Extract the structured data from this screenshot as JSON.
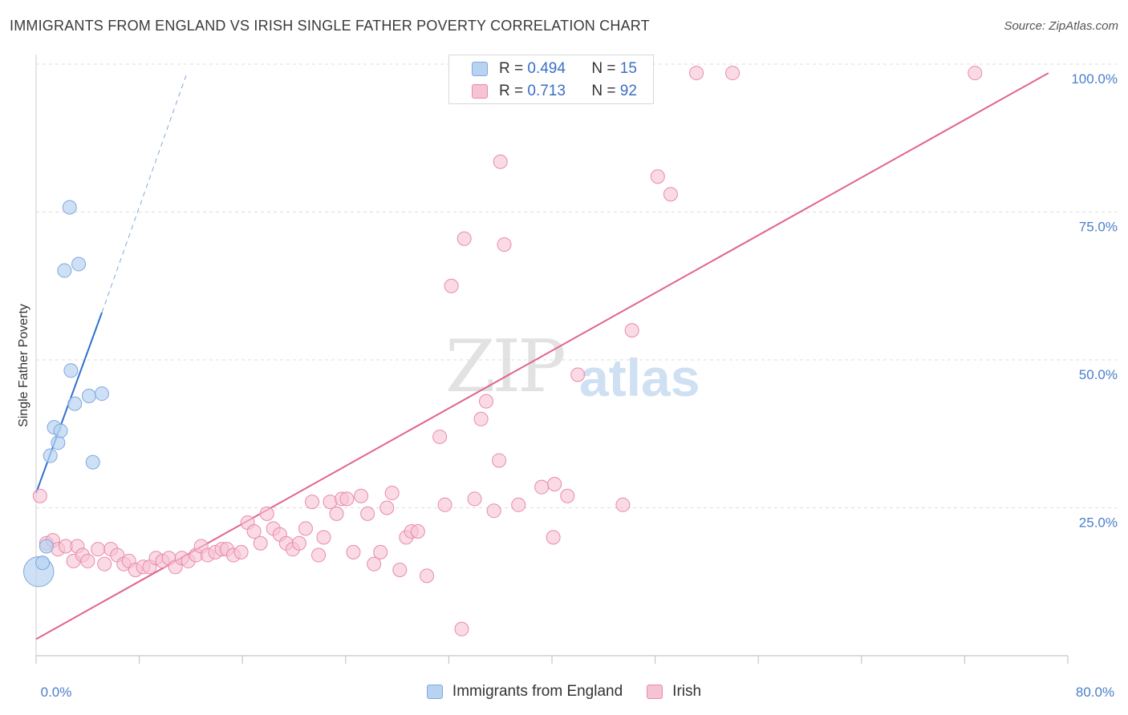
{
  "title": "IMMIGRANTS FROM ENGLAND VS IRISH SINGLE FATHER POVERTY CORRELATION CHART",
  "source": "Source: ZipAtlas.com",
  "watermark": {
    "zip": "ZIP",
    "atlas": "atlas"
  },
  "colors": {
    "blue_fill": "#b8d3f2",
    "blue_stroke": "#7fa8dd",
    "blue_line": "#2e6fd0",
    "pink_fill": "#f6c3d3",
    "pink_stroke": "#e98aa8",
    "pink_line": "#e0648d",
    "grid": "#dddddd",
    "tick_label": "#4a7fc9"
  },
  "legend": {
    "rows": [
      {
        "r_label": "R =",
        "r_value": "0.494",
        "n_label": "N =",
        "n_value": "15"
      },
      {
        "r_label": "R =",
        "r_value": "0.713",
        "n_label": "N = ",
        "n_value": "92"
      }
    ]
  },
  "bottom_legend": [
    "Immigrants from England",
    "Irish"
  ],
  "chart_data": {
    "type": "scatter",
    "title": "IMMIGRANTS FROM ENGLAND VS IRISH SINGLE FATHER POVERTY CORRELATION CHART",
    "xlabel": "",
    "ylabel": "Single Father Poverty",
    "xlim": [
      0,
      80
    ],
    "ylim": [
      0,
      100
    ],
    "x_tick_labels": [
      "0.0%",
      "80.0%"
    ],
    "y_ticks": [
      25,
      50,
      75,
      100
    ],
    "y_tick_labels": [
      "25.0%",
      "50.0%",
      "75.0%",
      "100.0%"
    ],
    "grid": true,
    "legend_position": "top-center",
    "series": [
      {
        "name": "Immigrants from England",
        "color": "#b8d3f2",
        "points": [
          [
            0.2,
            14.2,
            2.2
          ],
          [
            0.5,
            15.7,
            1
          ],
          [
            0.8,
            18.5,
            1
          ],
          [
            1.1,
            33.8,
            1
          ],
          [
            1.4,
            38.6,
            1
          ],
          [
            1.7,
            36.0,
            1
          ],
          [
            1.9,
            38.0,
            1
          ],
          [
            2.2,
            65.1,
            1
          ],
          [
            2.6,
            75.8,
            1
          ],
          [
            2.7,
            48.2,
            1
          ],
          [
            3.0,
            42.6,
            1
          ],
          [
            3.3,
            66.2,
            1
          ],
          [
            4.1,
            43.9,
            1
          ],
          [
            4.4,
            32.7,
            1
          ],
          [
            5.1,
            44.3,
            1
          ]
        ],
        "trend_solid": [
          [
            0,
            27.5
          ],
          [
            5.1,
            58.0
          ]
        ],
        "trend_dashed": [
          [
            5.1,
            58.0
          ],
          [
            11.7,
            98.5
          ]
        ]
      },
      {
        "name": "Irish",
        "color": "#f6c3d3",
        "points": [
          [
            0.3,
            27.0
          ],
          [
            0.8,
            19.0
          ],
          [
            1.3,
            19.5
          ],
          [
            1.7,
            18.0
          ],
          [
            2.3,
            18.5
          ],
          [
            2.9,
            16.0
          ],
          [
            3.2,
            18.5
          ],
          [
            3.6,
            17.0
          ],
          [
            4.0,
            16.0
          ],
          [
            4.8,
            18.0
          ],
          [
            5.3,
            15.5
          ],
          [
            5.8,
            18.0
          ],
          [
            6.3,
            17.0
          ],
          [
            6.8,
            15.5
          ],
          [
            7.2,
            16.0
          ],
          [
            7.7,
            14.5
          ],
          [
            8.3,
            15.0
          ],
          [
            8.8,
            15.0
          ],
          [
            9.3,
            16.5
          ],
          [
            9.8,
            16.0
          ],
          [
            10.3,
            16.5
          ],
          [
            10.8,
            15.0
          ],
          [
            11.3,
            16.5
          ],
          [
            11.8,
            16.0
          ],
          [
            12.4,
            17.0
          ],
          [
            12.8,
            18.5
          ],
          [
            13.3,
            17.0
          ],
          [
            13.9,
            17.5
          ],
          [
            14.4,
            18.0
          ],
          [
            14.8,
            18.0
          ],
          [
            15.3,
            17.0
          ],
          [
            15.9,
            17.5
          ],
          [
            16.4,
            22.5
          ],
          [
            16.9,
            21.0
          ],
          [
            17.4,
            19.0
          ],
          [
            17.9,
            24.0
          ],
          [
            18.4,
            21.5
          ],
          [
            18.9,
            20.5
          ],
          [
            19.4,
            19.0
          ],
          [
            19.9,
            18.0
          ],
          [
            20.4,
            19.0
          ],
          [
            20.9,
            21.5
          ],
          [
            21.4,
            26.0
          ],
          [
            21.9,
            17.0
          ],
          [
            22.3,
            20.0
          ],
          [
            22.8,
            26.0
          ],
          [
            23.3,
            24.0
          ],
          [
            23.7,
            26.5
          ],
          [
            24.1,
            26.5
          ],
          [
            24.6,
            17.5
          ],
          [
            25.2,
            27.0
          ],
          [
            25.7,
            24.0
          ],
          [
            26.2,
            15.5
          ],
          [
            26.7,
            17.5
          ],
          [
            27.2,
            25.0
          ],
          [
            27.6,
            27.5
          ],
          [
            28.2,
            14.5
          ],
          [
            28.7,
            20.0
          ],
          [
            29.1,
            21.0
          ],
          [
            29.6,
            21.0
          ],
          [
            30.3,
            13.5
          ],
          [
            31.3,
            37.0
          ],
          [
            31.7,
            25.5
          ],
          [
            32.2,
            62.5
          ],
          [
            33.0,
            4.5
          ],
          [
            33.2,
            70.5
          ],
          [
            34.0,
            26.5
          ],
          [
            34.5,
            40.0
          ],
          [
            34.9,
            43.0
          ],
          [
            35.5,
            24.5
          ],
          [
            35.9,
            33.0
          ],
          [
            36.3,
            69.5
          ],
          [
            36.0,
            83.5
          ],
          [
            37.4,
            25.5
          ],
          [
            38.2,
            98.5
          ],
          [
            39.2,
            28.5
          ],
          [
            40.2,
            29.0
          ],
          [
            40.1,
            20.0
          ],
          [
            41.2,
            27.0
          ],
          [
            42.0,
            47.5
          ],
          [
            43.4,
            98.5
          ],
          [
            45.0,
            98.5
          ],
          [
            45.5,
            25.5
          ],
          [
            46.2,
            55.0
          ],
          [
            48.2,
            81.0
          ],
          [
            49.2,
            78.0
          ],
          [
            51.2,
            98.5
          ],
          [
            54.0,
            98.5
          ],
          [
            34.8,
            98.5
          ],
          [
            36.9,
            98.5
          ],
          [
            72.8,
            98.5
          ],
          [
            39.0,
            98.5
          ]
        ],
        "trend": [
          [
            0,
            2.8
          ],
          [
            78.5,
            98.5
          ]
        ]
      }
    ]
  }
}
